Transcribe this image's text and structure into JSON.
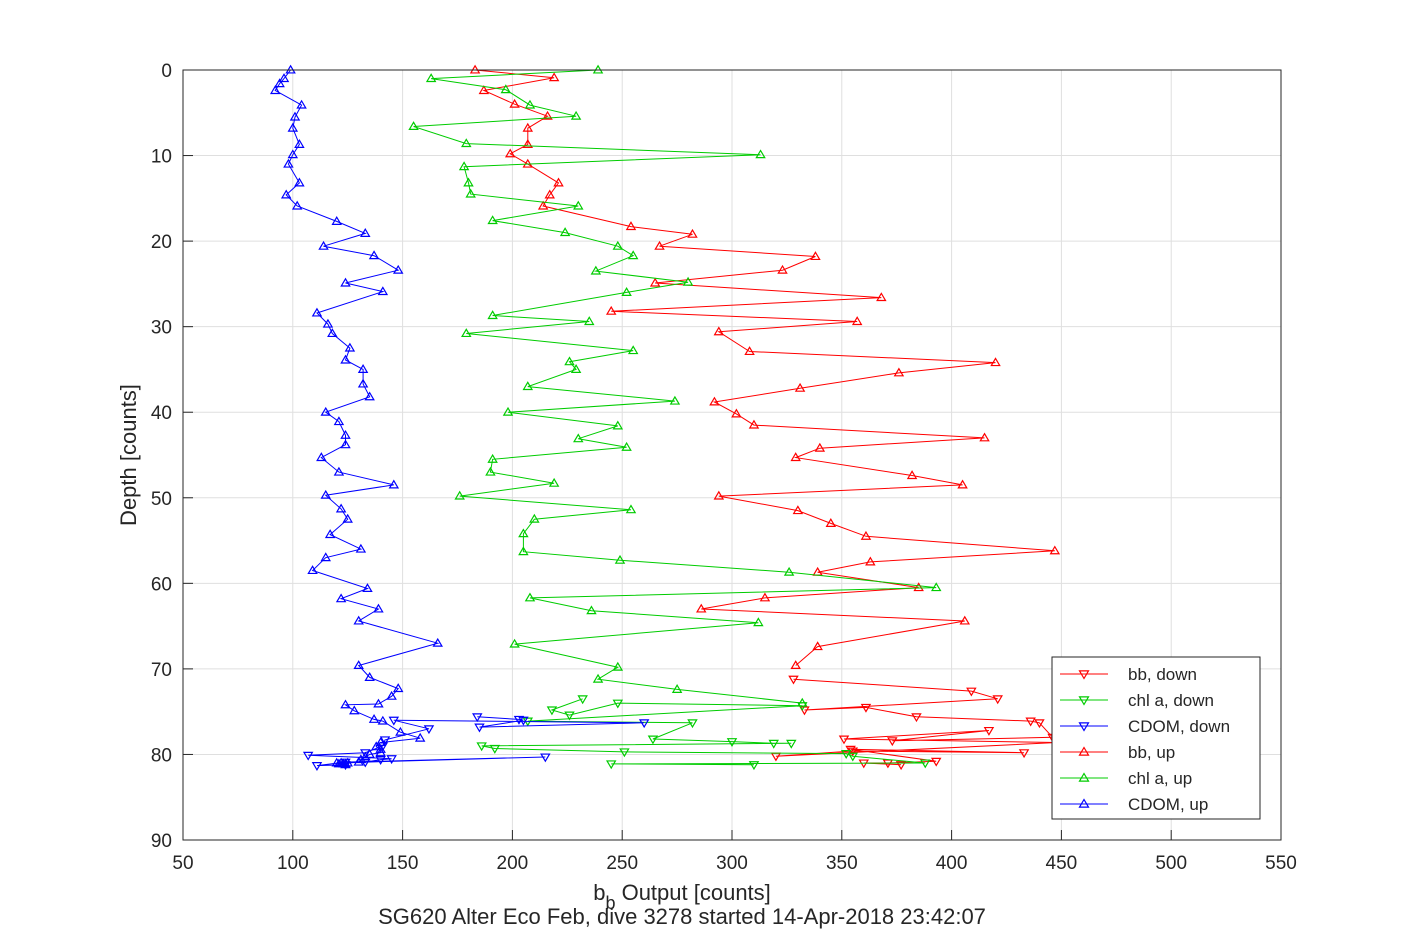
{
  "chart_data": {
    "type": "line",
    "xlabel_main": "b",
    "xlabel_sub": "b",
    "xlabel_rest": " Output [counts]",
    "ylabel": "Depth [counts]",
    "footer": "SG620 Alter Eco Feb, dive 3278 started 14-Apr-2018 23:42:07",
    "xlim": [
      50,
      550
    ],
    "ylim": [
      0,
      90
    ],
    "y_reversed": true,
    "grid": true,
    "legend_position": "bottom-right",
    "xticks": [
      50,
      100,
      150,
      200,
      250,
      300,
      350,
      400,
      450,
      500,
      550
    ],
    "yticks": [
      0,
      10,
      20,
      30,
      40,
      50,
      60,
      70,
      80,
      90
    ],
    "series": [
      {
        "name": "bb, down",
        "color": "#ff0000",
        "marker": "triangle-down",
        "x": [
          328,
          409,
          421,
          333,
          361,
          384,
          436,
          440,
          446,
          373,
          417,
          351,
          448,
          320,
          355,
          433,
          354,
          393,
          371,
          360,
          377
        ],
        "y": [
          71.2,
          72.6,
          73.5,
          74.8,
          74.5,
          75.6,
          76.1,
          76.3,
          78.0,
          78.4,
          77.2,
          78.2,
          78.6,
          80.2,
          79.6,
          79.8,
          79.4,
          80.8,
          81.0,
          81.0,
          81.2
        ]
      },
      {
        "name": "chl a, down",
        "color": "#00cc00",
        "marker": "triangle-down",
        "x": [
          232,
          218,
          226,
          248,
          332,
          207,
          282,
          264,
          300,
          319,
          327,
          186,
          192,
          251,
          352,
          355,
          388,
          245,
          310
        ],
        "y": [
          73.5,
          74.8,
          75.4,
          74.0,
          74.3,
          76.1,
          76.3,
          78.2,
          78.5,
          78.7,
          78.7,
          79.0,
          79.3,
          79.7,
          79.9,
          80.2,
          81.0,
          81.1,
          81.2
        ]
      },
      {
        "name": "CDOM, down",
        "color": "#0000ff",
        "marker": "triangle-down",
        "x": [
          184,
          203,
          205,
          185,
          260,
          146,
          162,
          142,
          141,
          133,
          107,
          145,
          140,
          133,
          215,
          124,
          111,
          124
        ],
        "y": [
          75.6,
          75.9,
          76.0,
          76.8,
          76.3,
          76.0,
          77.0,
          78.3,
          79.0,
          79.8,
          80.1,
          80.5,
          80.6,
          80.9,
          80.3,
          80.9,
          81.3,
          81.2
        ]
      },
      {
        "name": "bb, up",
        "color": "#ff0000",
        "marker": "triangle-up",
        "x": [
          183,
          219,
          187,
          201,
          216,
          207,
          207,
          199,
          207,
          221,
          217,
          214,
          254,
          282,
          267,
          338,
          323,
          265,
          368,
          245,
          357,
          294,
          308,
          420,
          376,
          331,
          292,
          302,
          310,
          415,
          340,
          329,
          382,
          405,
          294,
          330,
          345,
          361,
          447,
          363,
          339,
          385,
          315,
          286,
          406,
          339,
          329
        ],
        "y": [
          0,
          0.9,
          2.4,
          4.0,
          5.4,
          6.8,
          8.7,
          9.8,
          11.0,
          13.2,
          14.6,
          15.9,
          18.3,
          19.2,
          20.6,
          21.8,
          23.4,
          24.9,
          26.6,
          28.2,
          29.4,
          30.6,
          32.9,
          34.2,
          35.4,
          37.2,
          38.8,
          40.2,
          41.5,
          43.0,
          44.2,
          45.3,
          47.4,
          48.5,
          49.8,
          51.5,
          53.0,
          54.5,
          56.2,
          57.5,
          58.7,
          60.5,
          61.7,
          63.0,
          64.4,
          67.4,
          69.6
        ]
      },
      {
        "name": "chl a, up",
        "color": "#00cc00",
        "marker": "triangle-up",
        "x": [
          239,
          163,
          197,
          208,
          229,
          155,
          179,
          313,
          178,
          180,
          181,
          230,
          191,
          224,
          248,
          255,
          238,
          280,
          252,
          191,
          235,
          179,
          255,
          226,
          229,
          207,
          274,
          198,
          248,
          230,
          252,
          191,
          190,
          219,
          176,
          254,
          210,
          205,
          205,
          249,
          326,
          393,
          208,
          236,
          312,
          201,
          248,
          239,
          275,
          332
        ],
        "y": [
          0,
          1.0,
          2.3,
          4.1,
          5.4,
          6.6,
          8.6,
          9.9,
          11.3,
          13.2,
          14.5,
          15.9,
          17.6,
          19.0,
          20.6,
          21.7,
          23.5,
          24.8,
          26.0,
          28.7,
          29.4,
          30.8,
          32.8,
          34.1,
          35.0,
          37.0,
          38.7,
          40.0,
          41.6,
          43.1,
          44.1,
          45.5,
          47.0,
          48.3,
          49.8,
          51.4,
          52.5,
          54.2,
          56.3,
          57.3,
          58.7,
          60.5,
          61.7,
          63.2,
          64.6,
          67.1,
          69.8,
          71.2,
          72.4,
          74.0
        ]
      },
      {
        "name": "CDOM, up",
        "color": "#0000ff",
        "marker": "triangle-up",
        "x": [
          99,
          96,
          94,
          92,
          104,
          101,
          100,
          103,
          100,
          98,
          103,
          97,
          102,
          120,
          133,
          114,
          137,
          148,
          124,
          141,
          111,
          116,
          118,
          126,
          124,
          132,
          132,
          135,
          115,
          121,
          124,
          124,
          113,
          121,
          146,
          115,
          122,
          125,
          117,
          131,
          115,
          109,
          134,
          122,
          139,
          130,
          166,
          130,
          135,
          148,
          145,
          139,
          124,
          128,
          137,
          141,
          149,
          158,
          140,
          138,
          140,
          140,
          135,
          133,
          131,
          130,
          125,
          123,
          124,
          124,
          122,
          121,
          120
        ],
        "y": [
          0,
          1.0,
          1.6,
          2.4,
          4.1,
          5.5,
          6.8,
          8.7,
          9.9,
          11.0,
          13.2,
          14.6,
          15.9,
          17.7,
          19.1,
          20.6,
          21.7,
          23.4,
          24.9,
          25.9,
          28.4,
          29.7,
          30.8,
          32.5,
          33.9,
          35.0,
          36.7,
          38.2,
          40.0,
          41.1,
          42.7,
          43.8,
          45.3,
          47.0,
          48.5,
          49.7,
          51.3,
          52.5,
          54.3,
          56.0,
          57.0,
          58.5,
          60.6,
          61.8,
          63.0,
          64.4,
          67.0,
          69.6,
          71.0,
          72.3,
          73.2,
          74.1,
          74.2,
          74.9,
          75.9,
          76.1,
          77.4,
          78.1,
          78.6,
          79.1,
          79.4,
          79.8,
          80.0,
          80.3,
          80.6,
          80.9,
          81.0,
          81.1,
          81.2,
          81.1,
          81.0,
          81.1,
          81.0
        ]
      }
    ]
  }
}
